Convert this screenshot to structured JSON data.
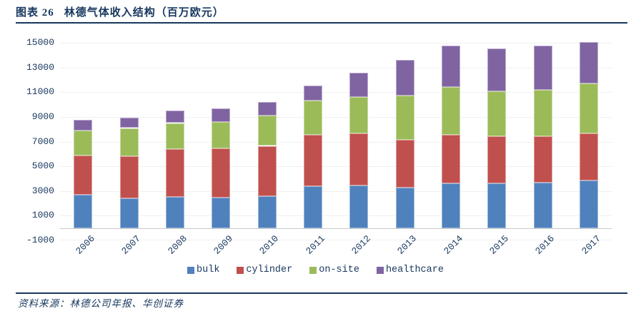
{
  "header": {
    "figure_label": "图表 26",
    "title": "林德气体收入结构（百万欧元）"
  },
  "footer": {
    "source": "资料来源：林德公司年报、华创证券"
  },
  "colors": {
    "text": "#17375E",
    "rule": "#17375E",
    "gridline": "#F0F0F0",
    "axis_line": "#C8C8C8",
    "bulk": "#4F81BD",
    "cylinder": "#C0504D",
    "on_site": "#9BBB59",
    "healthcare": "#8064A2"
  },
  "chart_data": {
    "type": "bar",
    "stacked": true,
    "title": "林德气体收入结构（百万欧元）",
    "unit": "百万欧元",
    "categories": [
      "2006",
      "2007",
      "2008",
      "2009",
      "2010",
      "2011",
      "2012",
      "2013",
      "2014",
      "2015",
      "2016",
      "2017"
    ],
    "series": [
      {
        "name": "bulk",
        "color": "#4F81BD",
        "values": [
          2700,
          2400,
          2500,
          2450,
          2600,
          3400,
          3450,
          3300,
          3650,
          3600,
          3700,
          3850
        ]
      },
      {
        "name": "cylinder",
        "color": "#C0504D",
        "values": [
          3150,
          3400,
          3900,
          4000,
          4050,
          4150,
          4200,
          3850,
          3900,
          3850,
          3750,
          3800
        ]
      },
      {
        "name": "on-site",
        "color": "#9BBB59",
        "values": [
          2050,
          2300,
          2100,
          2150,
          2450,
          2750,
          2950,
          3550,
          3850,
          3600,
          3750,
          4050
        ]
      },
      {
        "name": "healthcare",
        "color": "#8064A2",
        "values": [
          850,
          850,
          1000,
          1100,
          1100,
          1250,
          1950,
          2900,
          3400,
          3500,
          3550,
          3350
        ]
      }
    ],
    "totals": [
      8750,
      8950,
      9500,
      9700,
      10200,
      11550,
      12550,
      13600,
      14800,
      14550,
      14750,
      15050
    ],
    "xlabel": "",
    "ylabel": "",
    "ylim": [
      -1000,
      15000
    ],
    "yticks": [
      -1000,
      1000,
      3000,
      5000,
      7000,
      9000,
      11000,
      13000,
      15000
    ],
    "bar_baseline": 0,
    "grid": "horizontal",
    "legend_position": "bottom",
    "x_tick_rotation": -45
  }
}
